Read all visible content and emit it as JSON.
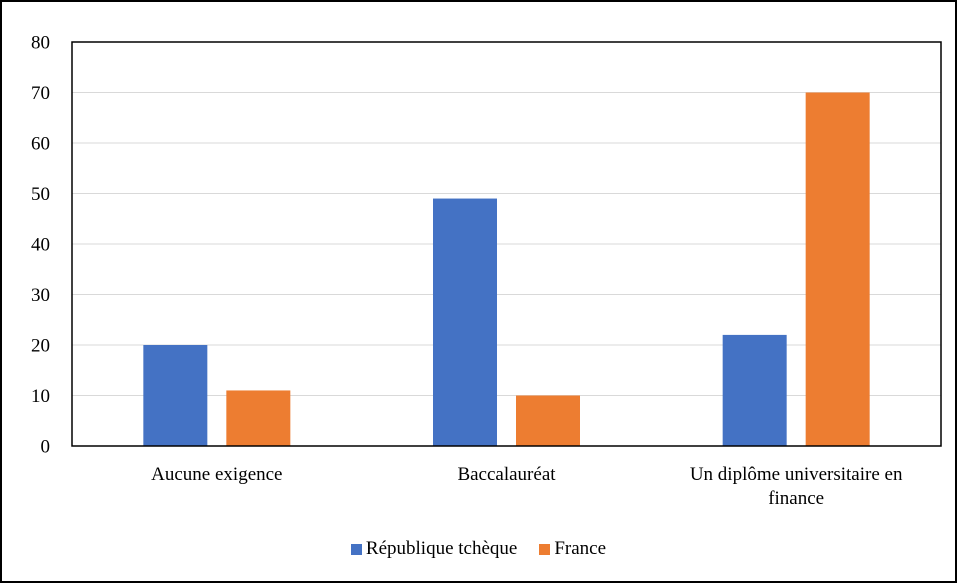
{
  "chart_data": {
    "type": "bar",
    "categories": [
      "Aucune exigence",
      "Baccalauréat",
      "Un diplôme universitaire en finance"
    ],
    "series": [
      {
        "name": "République tchèque",
        "color": "#4472c4",
        "values": [
          20,
          49,
          22
        ]
      },
      {
        "name": "France",
        "color": "#ed7d31",
        "values": [
          11,
          10,
          70
        ]
      }
    ],
    "ylim": [
      0,
      80
    ],
    "yticks": [
      0,
      10,
      20,
      30,
      40,
      50,
      60,
      70,
      80
    ],
    "grid": true,
    "legend": "bottom"
  }
}
